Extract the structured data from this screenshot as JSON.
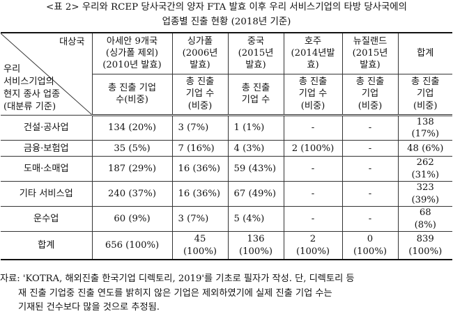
{
  "caption": {
    "line1": "<표 2> 우리와 RCEP 당사국간의 양자 FTA 발효 이후 우리 서비스기업의 타방 당사국에의",
    "line2": "업종별 진출 현황 (2018년 기준)"
  },
  "header": {
    "corner_top": "대상국",
    "corner_bottom_lines": [
      "우리",
      "서비스기업의",
      "현지 종사 업종",
      "(대분류 기준)"
    ],
    "countries": [
      {
        "name": "아세안 9개국",
        "sub": "(싱가폴 제외)",
        "year": "(2010년 발효)"
      },
      {
        "name": "싱가폴",
        "sub": "(2006년",
        "year": "발효)"
      },
      {
        "name": "중국",
        "sub": "(2015년",
        "year": "발효)"
      },
      {
        "name": "호주",
        "sub": "(2014년발",
        "year": "효)"
      },
      {
        "name": "뉴질랜드",
        "sub": "(2015년",
        "year": "발효)"
      },
      {
        "name": "합계",
        "sub": "",
        "year": ""
      }
    ],
    "metrics": [
      {
        "l1": "총 진출 기업",
        "l2": "수(비중)",
        "l3": ""
      },
      {
        "l1": "총 진출",
        "l2": "기업 수",
        "l3": "(비중)"
      },
      {
        "l1": "총 진출",
        "l2": "기업 수",
        "l3": ""
      },
      {
        "l1": "총 진출",
        "l2": "기업 수",
        "l3": "(비중)"
      },
      {
        "l1": "총 진출",
        "l2": "기업",
        "l3": "(비중)"
      },
      {
        "l1": "총 진출",
        "l2": "기업",
        "l3": "(비중)"
      }
    ]
  },
  "rows": [
    {
      "label": "건설·공사업",
      "c1": "134 (20%)",
      "c2": "3 (7%)",
      "c3": "1 (1%)",
      "c4": "-",
      "c5": "-",
      "t1": "138",
      "t2": "(17%)"
    },
    {
      "label": "금융·보험업",
      "c1": "35 (5%)",
      "c2": "7 (16%)",
      "c3": "4 (3%)",
      "c4": "2 (100%)",
      "c5": "-",
      "t1": "48 (6%)",
      "t2": ""
    },
    {
      "label": "도매·소매업",
      "c1": "187 (29%)",
      "c2": "16 (36%)",
      "c3": "59 (43%)",
      "c4": "-",
      "c5": "-",
      "t1": "262",
      "t2": "(31%)"
    },
    {
      "label": "기타 서비스업",
      "c1": "240 (37%)",
      "c2": "16 (36%)",
      "c3": "67 (49%)",
      "c4": "-",
      "c5": "-",
      "t1": "323",
      "t2": "(39%)"
    },
    {
      "label": "운수업",
      "c1": "60 (9%)",
      "c2": "3 (7%)",
      "c3": "5 (4%)",
      "c4": "-",
      "c5": "-",
      "t1": "68",
      "t2": "(8%)"
    }
  ],
  "total": {
    "label": "합계",
    "c1": "656 (100%)",
    "c2a": "45",
    "c2b": "(100%)",
    "c3a": "136",
    "c3b": "(100%)",
    "c4a": "2",
    "c4b": "(100%)",
    "c5a": "0",
    "c5b": "(100%)",
    "t1": "839",
    "t2": "(100%)"
  },
  "source": {
    "line1": "자료: 'KOTRA, 해외진출 한국기업 디렉토리, 2019'를 기초로 필자가 작성. 단, 디렉토리 등",
    "line2": "재 진출 기업중 진출 연도를 밝히지 않은 기업은 제외하였기에 실제 진출 기업 수는",
    "line3": "기재된 건수보다 많을 것으로 추정됨."
  }
}
